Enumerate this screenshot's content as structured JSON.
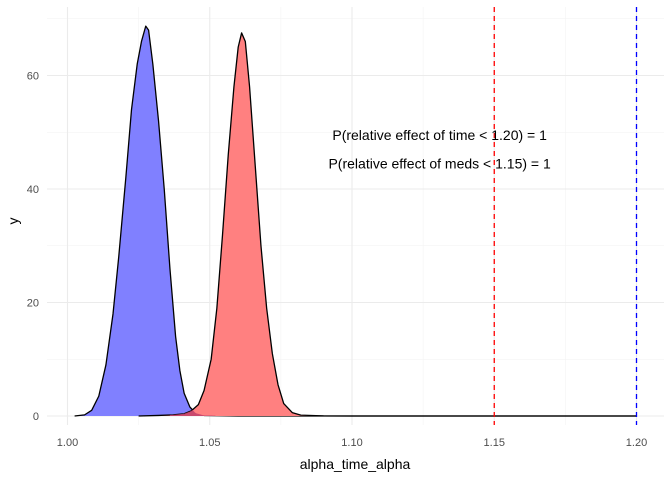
{
  "chart_data": {
    "type": "area",
    "title": "",
    "xlabel": "alpha_time_alpha",
    "ylabel": "y",
    "xlim": [
      1.0,
      1.2
    ],
    "ylim": [
      0,
      70
    ],
    "x_ticks": [
      1.0,
      1.05,
      1.1,
      1.15,
      1.2
    ],
    "x_tick_labels": [
      "1.00",
      "1.05",
      "1.10",
      "1.15",
      "1.20"
    ],
    "y_ticks": [
      0,
      20,
      40,
      60
    ],
    "y_tick_labels": [
      "0",
      "20",
      "40",
      "60"
    ],
    "grid": true,
    "legend": "none",
    "series": [
      {
        "fill": "#8080ff",
        "stroke": "#000000",
        "points": [
          [
            1.0025,
            0.0
          ],
          [
            1.006,
            0.2
          ],
          [
            1.0085,
            1.0
          ],
          [
            1.011,
            3.5
          ],
          [
            1.0135,
            9.0
          ],
          [
            1.016,
            18.0
          ],
          [
            1.018,
            28.0
          ],
          [
            1.0205,
            42.0
          ],
          [
            1.0225,
            54.0
          ],
          [
            1.0245,
            62.0
          ],
          [
            1.026,
            66.0
          ],
          [
            1.0275,
            68.7
          ],
          [
            1.0285,
            68.0
          ],
          [
            1.03,
            62.0
          ],
          [
            1.032,
            52.0
          ],
          [
            1.034,
            40.0
          ],
          [
            1.036,
            26.0
          ],
          [
            1.038,
            14.0
          ],
          [
            1.0395,
            8.0
          ],
          [
            1.041,
            4.0
          ],
          [
            1.043,
            1.6
          ],
          [
            1.045,
            0.5
          ],
          [
            1.048,
            0.1
          ],
          [
            1.06,
            0.0
          ],
          [
            1.1,
            0.0
          ],
          [
            1.15,
            0.0
          ],
          [
            1.2,
            0.0
          ]
        ]
      },
      {
        "fill": "#ff8080",
        "stroke": "#000000",
        "points": [
          [
            1.025,
            0.0
          ],
          [
            1.032,
            0.1
          ],
          [
            1.037,
            0.2
          ],
          [
            1.041,
            0.4
          ],
          [
            1.0435,
            0.9
          ],
          [
            1.046,
            2.0
          ],
          [
            1.048,
            4.5
          ],
          [
            1.0505,
            10.0
          ],
          [
            1.0525,
            19.0
          ],
          [
            1.0545,
            32.0
          ],
          [
            1.0565,
            46.0
          ],
          [
            1.0585,
            58.0
          ],
          [
            1.06,
            65.0
          ],
          [
            1.0612,
            67.5
          ],
          [
            1.0625,
            66.0
          ],
          [
            1.064,
            58.0
          ],
          [
            1.066,
            44.0
          ],
          [
            1.068,
            30.0
          ],
          [
            1.07,
            19.0
          ],
          [
            1.072,
            11.0
          ],
          [
            1.074,
            5.5
          ],
          [
            1.076,
            2.2
          ],
          [
            1.079,
            0.6
          ],
          [
            1.082,
            0.15
          ],
          [
            1.09,
            0.02
          ],
          [
            1.1,
            0.0
          ],
          [
            1.15,
            0.0
          ],
          [
            1.2,
            0.0
          ]
        ]
      }
    ],
    "vlines": [
      {
        "x": 1.15,
        "color": "#ff0000",
        "dash": true
      },
      {
        "x": 1.2,
        "color": "#0000ff",
        "dash": true
      }
    ],
    "annotations": [
      {
        "text": "P(relative effect of time < 1.20) =  1",
        "x": 1.1308,
        "y": 49.5
      },
      {
        "text": "P(relative effect of meds < 1.15) =  1",
        "x": 1.1308,
        "y": 44.5
      }
    ]
  }
}
